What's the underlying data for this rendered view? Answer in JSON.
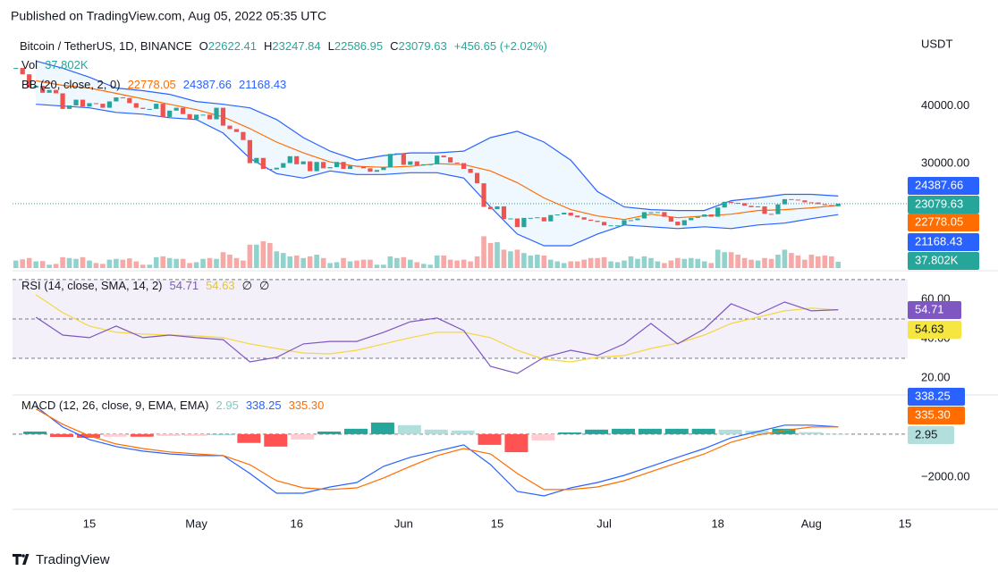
{
  "header": {
    "published": "Published on TradingView.com, Aug 05, 2022 05:35 UTC",
    "footer": "TradingView"
  },
  "chart_data": {
    "type": "candlestick",
    "title": "Bitcoin / TetherUS, 1D, BINANCE",
    "ohlc": [
      {
        "key": "O",
        "value": "22622.41"
      },
      {
        "key": "H",
        "value": "23247.84"
      },
      {
        "key": "L",
        "value": "22586.95"
      },
      {
        "key": "C",
        "value": "23079.63"
      }
    ],
    "change": "+456.65 (+2.02%)",
    "currency": "USDT",
    "up_color": "#26a69a",
    "down_color": "#ef5350",
    "close": [
      46600,
      45500,
      43200,
      43500,
      42300,
      42800,
      42200,
      39500,
      40100,
      41100,
      39900,
      40500,
      40400,
      39700,
      40800,
      41500,
      41400,
      40500,
      39700,
      39500,
      39500,
      40400,
      38100,
      39200,
      39700,
      38600,
      37700,
      38500,
      38500,
      37700,
      39700,
      36600,
      36000,
      35500,
      34100,
      30100,
      31000,
      29100,
      29000,
      29300,
      30100,
      31300,
      29900,
      30400,
      28700,
      30300,
      29200,
      29400,
      30300,
      29100,
      29650,
      29500,
      29200,
      28600,
      28900,
      29400,
      31700,
      31800,
      29800,
      30400,
      29700,
      29900,
      29900,
      31400,
      31100,
      30200,
      30100,
      29100,
      28400,
      26600,
      22500,
      22100,
      22600,
      20400,
      20500,
      19000,
      20600,
      20600,
      20700,
      20000,
      21100,
      21200,
      21500,
      21000,
      20700,
      20300,
      20100,
      19900,
      19300,
      19300,
      19300,
      20200,
      20200,
      20500,
      21600,
      21600,
      21600,
      20800,
      19950,
      19300,
      20200,
      20600,
      20800,
      21200,
      20800,
      22400,
      23400,
      23200,
      23150,
      22700,
      22450,
      22600,
      21300,
      21250,
      22950,
      23850,
      23770,
      23640,
      23300,
      23270,
      22990,
      22820,
      22620,
      23079.63
    ],
    "volume": [
      45000,
      52000,
      60000,
      40000,
      42000,
      20000,
      25000,
      65000,
      60000,
      55000,
      65000,
      45000,
      30000,
      25000,
      50000,
      55000,
      50000,
      58000,
      40000,
      20000,
      20000,
      65000,
      70000,
      60000,
      55000,
      55000,
      30000,
      35000,
      55000,
      60000,
      55000,
      95000,
      80000,
      60000,
      45000,
      140000,
      140000,
      160000,
      150000,
      100000,
      90000,
      70000,
      75000,
      60000,
      70000,
      80000,
      60000,
      30000,
      35000,
      60000,
      40000,
      45000,
      50000,
      50000,
      20000,
      20000,
      70000,
      60000,
      65000,
      50000,
      35000,
      25000,
      20000,
      75000,
      75000,
      50000,
      45000,
      50000,
      40000,
      70000,
      190000,
      150000,
      155000,
      110000,
      100000,
      110000,
      90000,
      75000,
      80000,
      75000,
      50000,
      40000,
      30000,
      40000,
      40000,
      50000,
      60000,
      60000,
      65000,
      40000,
      35000,
      45000,
      70000,
      55000,
      70000,
      60000,
      40000,
      30000,
      45000,
      60000,
      55000,
      60000,
      55000,
      40000,
      30000,
      110000,
      95000,
      95000,
      80000,
      60000,
      50000,
      45000,
      60000,
      55000,
      80000,
      110000,
      90000,
      75000,
      50000,
      80000,
      70000,
      75000,
      70000,
      37802
    ],
    "volume_ylim": [
      0,
      1400000
    ],
    "volume_legend": {
      "name": "Vol",
      "value": "37.802K"
    },
    "xlim": [
      -0.5,
      133.4
    ],
    "xticks": [
      {
        "value": 11,
        "label": "15"
      },
      {
        "value": 27,
        "label": "May"
      },
      {
        "value": 42,
        "label": "16"
      },
      {
        "value": 58,
        "label": "Jun"
      },
      {
        "value": 72,
        "label": "15"
      },
      {
        "value": 88,
        "label": "Jul"
      },
      {
        "value": 105,
        "label": "18"
      },
      {
        "value": 119,
        "label": "Aug"
      },
      {
        "value": 133,
        "label": "15"
      }
    ],
    "ylim": [
      11900,
      52500
    ],
    "yticks": [
      {
        "value": 30000,
        "label": "30000.00"
      },
      {
        "value": 40000,
        "label": "40000.00"
      }
    ],
    "indicator_x": [
      3,
      7,
      11,
      15,
      19,
      23,
      27,
      31,
      35,
      39,
      43,
      47,
      51,
      55,
      59,
      63,
      67,
      71,
      75,
      79,
      83,
      87,
      91,
      95,
      99,
      103,
      107,
      111,
      115,
      119,
      123
    ],
    "bb": {
      "name": "BB (20, close, 2, 0)",
      "legend_values": [
        "22778.05",
        "24387.66",
        "21168.43"
      ],
      "basis_color": "#ff6d00",
      "band_color": "#2962ff",
      "basis": [
        44375,
        43590,
        43125,
        42190,
        41250,
        40310,
        39375,
        38125,
        36090,
        33750,
        31875,
        30310,
        29530,
        29375,
        29530,
        30000,
        29840,
        28750,
        26720,
        24060,
        22030,
        20940,
        20310,
        21250,
        20625,
        20940,
        21250,
        21875,
        22030,
        22340,
        22778.05
      ],
      "upper": [
        47810,
        46560,
        45000,
        43125,
        42660,
        42030,
        40780,
        40310,
        39690,
        37660,
        34530,
        32190,
        30625,
        31410,
        31875,
        31875,
        32190,
        34530,
        35625,
        33750,
        30625,
        25160,
        22500,
        22030,
        21875,
        21875,
        23590,
        24060,
        24690,
        24690,
        24387.66
      ],
      "lower": [
        40310,
        40000,
        39690,
        38900,
        38590,
        37970,
        37660,
        35310,
        30940,
        28280,
        27500,
        28750,
        28125,
        28125,
        28440,
        28440,
        27500,
        22500,
        17810,
        15780,
        15780,
        17810,
        19375,
        19060,
        18750,
        19060,
        18750,
        19375,
        19690,
        20470,
        21168.43
      ]
    },
    "rsi": {
      "name": "RSI (14, close, SMA, 14, 2)",
      "legend_values": [
        "54.71",
        "54.63",
        "∅",
        "∅"
      ],
      "rsi_color": "#7e57c2",
      "sma_color": "#f5d742",
      "values": [
        50.9,
        41.8,
        40.5,
        46.4,
        40.5,
        41.8,
        40.5,
        39.5,
        28.2,
        30.5,
        37.3,
        38.6,
        38.6,
        43.2,
        48.6,
        50.5,
        44.1,
        25.9,
        22.3,
        30.5,
        34.1,
        31.4,
        37.3,
        47.7,
        37.3,
        45,
        57.7,
        52.3,
        58.6,
        54.1,
        54.71
      ],
      "sma": [
        62.3,
        53.2,
        46.4,
        43.2,
        42.3,
        41.8,
        41.4,
        40.5,
        37.3,
        35,
        32.7,
        32.3,
        34.1,
        37.3,
        40.5,
        43.2,
        43.2,
        40.5,
        34.1,
        29.5,
        28.2,
        30.5,
        31.4,
        35,
        37.7,
        41.8,
        47.7,
        50.9,
        54.1,
        55.5,
        54.63
      ],
      "levels": [
        30,
        50,
        70
      ],
      "ylim": [
        12.3,
        73.6
      ],
      "yticks": [
        {
          "value": 20,
          "label": "20.00"
        },
        {
          "value": 40,
          "label": "40.00"
        },
        {
          "value": 60,
          "label": "60.00"
        }
      ]
    },
    "macd": {
      "name": "MACD (12, 26, close, 9, EMA, EMA)",
      "legend_values": [
        "2.95",
        "338.25",
        "335.30"
      ],
      "macd_color": "#2962ff",
      "signal_color": "#ff6d00",
      "hist": [
        120,
        -130,
        -170,
        -120,
        -120,
        -90,
        -80,
        0,
        -410,
        -580,
        -250,
        120,
        250,
        540,
        420,
        210,
        170,
        -500,
        -840,
        -295,
        80,
        210,
        250,
        250,
        250,
        250,
        205,
        165,
        250,
        90,
        2.95
      ],
      "macd": [
        1290,
        330,
        -250,
        -580,
        -790,
        -920,
        -1000,
        -1000,
        -1830,
        -2750,
        -2750,
        -2460,
        -2250,
        -1500,
        -1080,
        -790,
        -500,
        -1420,
        -2670,
        -2875,
        -2500,
        -2250,
        -1920,
        -1500,
        -1080,
        -670,
        -170,
        125,
        420,
        420,
        338.25
      ],
      "signal": [
        1170,
        460,
        -80,
        -460,
        -670,
        -830,
        -920,
        -1000,
        -1420,
        -2170,
        -2500,
        -2580,
        -2500,
        -2040,
        -1500,
        -1000,
        -670,
        -920,
        -1830,
        -2580,
        -2580,
        -2460,
        -2170,
        -1750,
        -1330,
        -920,
        -375,
        -40,
        170,
        330,
        335.3
      ],
      "ylim": [
        -3500,
        1700
      ],
      "yticks": [
        {
          "value": -2000,
          "label": "−2000.00"
        }
      ]
    }
  }
}
